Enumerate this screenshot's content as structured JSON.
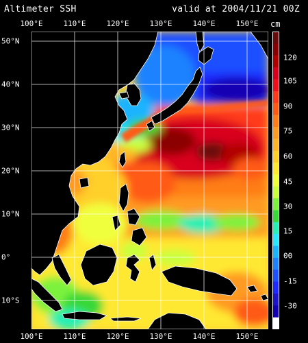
{
  "header": {
    "product_title": "Altimeter SSH",
    "valid_time": "valid at 2004/11/21 00Z"
  },
  "map": {
    "lon_labels": [
      "100°E",
      "110°E",
      "120°E",
      "130°E",
      "140°E",
      "150°E"
    ],
    "lat_labels": [
      "50°N",
      "40°N",
      "30°N",
      "20°N",
      "10°N",
      "0°",
      "10°S"
    ],
    "land_color": "#000000",
    "coast_color": "#ffffff",
    "grid_color": "#ffffff"
  },
  "colorbar": {
    "unit": "cm",
    "labels": [
      "120",
      "105",
      "90",
      "75",
      "60",
      "45",
      "30",
      "15",
      "00",
      "-15",
      "-30"
    ],
    "colors": [
      "#6a0a0a",
      "#8b0000",
      "#b20000",
      "#d8001a",
      "#f20e1a",
      "#ff3a1a",
      "#ff5a14",
      "#ff7d18",
      "#ff9a22",
      "#ffb428",
      "#ffcf2a",
      "#ffe832",
      "#f0ff3c",
      "#c8ff3c",
      "#7cf23c",
      "#38d838",
      "#28f0b4",
      "#28e8ff",
      "#1ab4ff",
      "#1e82ff",
      "#1e50ff",
      "#1e28ff",
      "#1e14cc",
      "#1400b4",
      "#ffffff"
    ]
  }
}
